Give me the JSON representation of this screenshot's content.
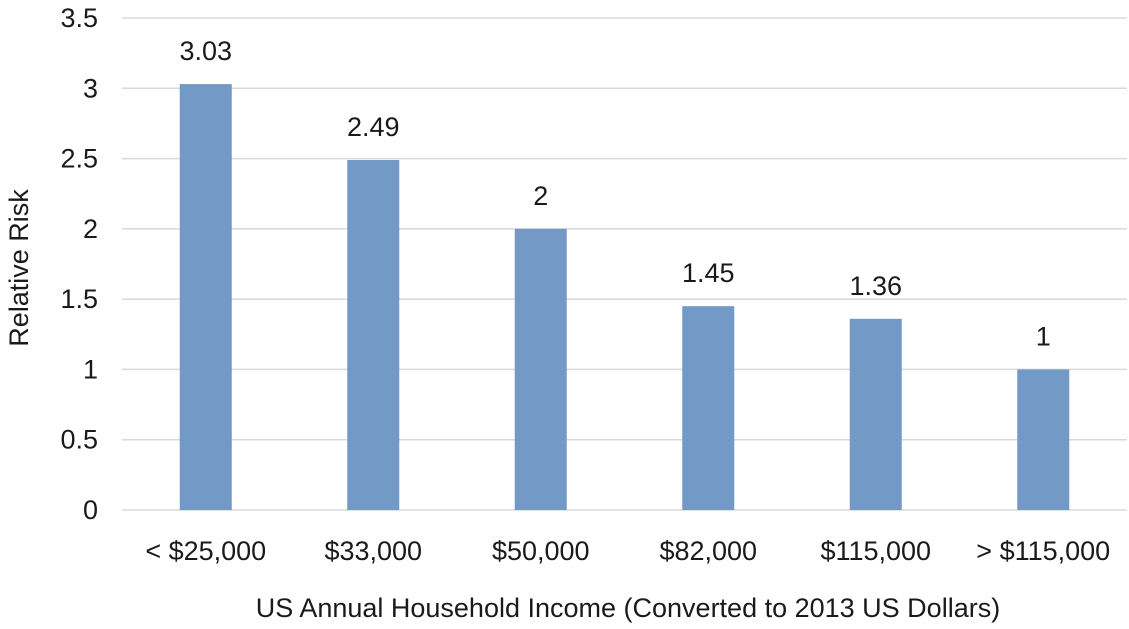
{
  "chart_data": {
    "type": "bar",
    "title": "",
    "xlabel": "US Annual Household Income (Converted to 2013 US Dollars)",
    "ylabel": "Relative Risk",
    "categories": [
      "< $25,000",
      "$33,000",
      "$50,000",
      "$82,000",
      "$115,000",
      "> $115,000"
    ],
    "values": [
      3.03,
      2.49,
      2,
      1.45,
      1.36,
      1
    ],
    "data_labels": [
      "3.03",
      "2.49",
      "2",
      "1.45",
      "1.36",
      "1"
    ],
    "ylim": [
      0,
      3.5
    ],
    "yticks": [
      0,
      0.5,
      1,
      1.5,
      2,
      2.5,
      3,
      3.5
    ],
    "ytick_labels": [
      "0",
      "0.5",
      "1",
      "1.5",
      "2",
      "2.5",
      "3",
      "3.5"
    ],
    "grid": true,
    "legend": "none",
    "bar_color": "#7399c6",
    "grid_color": "#d9d9d9"
  }
}
